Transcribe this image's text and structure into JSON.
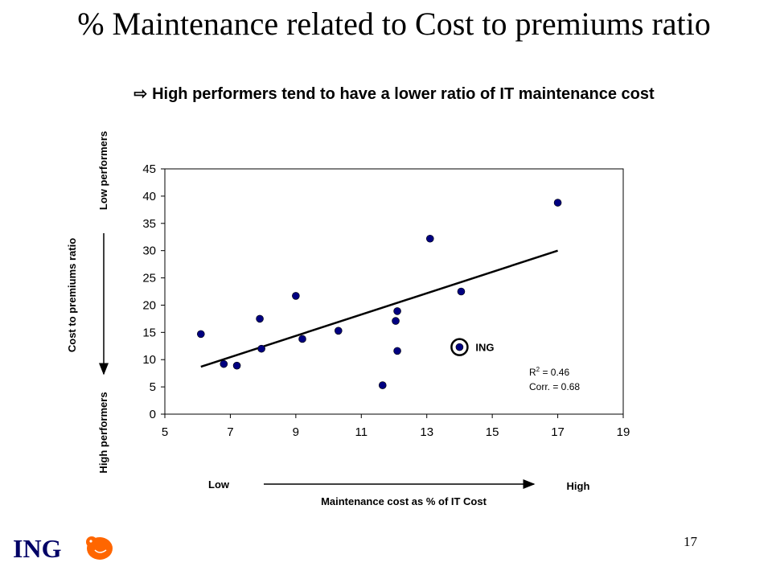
{
  "slide": {
    "title": "% Maintenance related to Cost to premiums ratio",
    "subtitle": "High performers tend to have a lower ratio of IT maintenance cost",
    "page_number": "17",
    "logo_text": "ING"
  },
  "chart_data": {
    "type": "scatter",
    "x_ticks": [
      "5",
      "7",
      "9",
      "11",
      "13",
      "15",
      "17",
      "19"
    ],
    "y_ticks": [
      "0",
      "5",
      "10",
      "15",
      "20",
      "25",
      "30",
      "35",
      "40",
      "45"
    ],
    "xlim": [
      5,
      19
    ],
    "ylim": [
      0,
      45
    ],
    "grid": false,
    "points": [
      {
        "x": 6.1,
        "y": 14.7
      },
      {
        "x": 6.8,
        "y": 9.2
      },
      {
        "x": 7.2,
        "y": 8.9
      },
      {
        "x": 7.9,
        "y": 17.5
      },
      {
        "x": 7.95,
        "y": 12.0
      },
      {
        "x": 9.0,
        "y": 21.7
      },
      {
        "x": 9.2,
        "y": 13.8
      },
      {
        "x": 10.3,
        "y": 15.3
      },
      {
        "x": 11.65,
        "y": 5.3
      },
      {
        "x": 12.05,
        "y": 17.1
      },
      {
        "x": 12.1,
        "y": 18.9
      },
      {
        "x": 12.1,
        "y": 11.6
      },
      {
        "x": 13.1,
        "y": 32.2
      },
      {
        "x": 14.05,
        "y": 22.5
      },
      {
        "x": 17.0,
        "y": 38.8
      }
    ],
    "highlight": {
      "x": 14.0,
      "y": 12.3,
      "label": "ING"
    },
    "trendline": {
      "x": [
        6.1,
        17.0
      ],
      "y": [
        8.7,
        30.0
      ]
    },
    "annotation": {
      "r2_label": "R",
      "r2_sup": "2",
      "r2_value": " = 0.46",
      "corr": "Corr. = 0.68"
    },
    "xlabel": "Maintenance cost as % of IT Cost",
    "ylabel": "Cost to premiums ratio",
    "x_low": "Low",
    "x_high": "High",
    "y_top": "Low performers",
    "y_bottom": "High performers",
    "colors": {
      "point": "#000080",
      "line": "#000000"
    }
  }
}
